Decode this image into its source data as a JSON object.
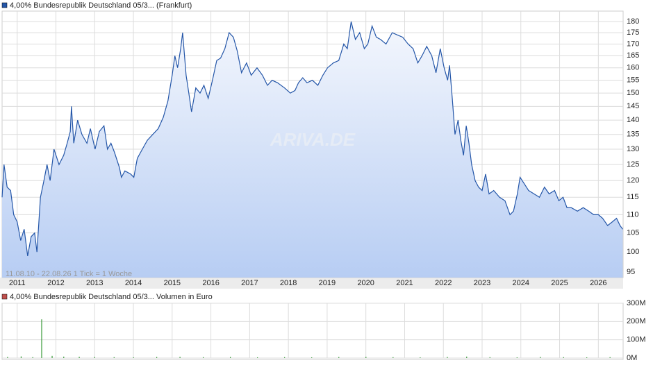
{
  "chart_data": [
    {
      "type": "line",
      "log": true,
      "grid": true,
      "note": "11.08.10 - 22.08.26   1 Tick = 1 Woche",
      "watermark": "ARIVA.DE",
      "xlim": [
        2010.61,
        2026.64
      ],
      "xticks": [
        2011,
        2012,
        2013,
        2014,
        2015,
        2016,
        2017,
        2018,
        2019,
        2020,
        2021,
        2022,
        2023,
        2024,
        2025,
        2026
      ],
      "ylim": [
        93.7,
        184.9
      ],
      "yticks": [
        95,
        100,
        105,
        110,
        115,
        120,
        125,
        130,
        135,
        140,
        145,
        150,
        155,
        160,
        165,
        170,
        175,
        180
      ],
      "x": [
        2010.61,
        2010.66,
        2010.74,
        2010.83,
        2010.91,
        2011.0,
        2011.09,
        2011.18,
        2011.27,
        2011.36,
        2011.45,
        2011.51,
        2011.6,
        2011.69,
        2011.77,
        2011.85,
        2011.95,
        2012.08,
        2012.2,
        2012.29,
        2012.37,
        2012.4,
        2012.46,
        2012.56,
        2012.67,
        2012.8,
        2012.89,
        2013.01,
        2013.12,
        2013.24,
        2013.33,
        2013.42,
        2013.51,
        2013.64,
        2013.69,
        2013.78,
        2013.93,
        2014.01,
        2014.1,
        2014.23,
        2014.36,
        2014.5,
        2014.64,
        2014.77,
        2014.89,
        2015.0,
        2015.07,
        2015.14,
        2015.22,
        2015.27,
        2015.36,
        2015.43,
        2015.5,
        2015.61,
        2015.72,
        2015.82,
        2015.93,
        2016.04,
        2016.15,
        2016.25,
        2016.36,
        2016.47,
        2016.58,
        2016.68,
        2016.79,
        2016.92,
        2017.04,
        2017.19,
        2017.33,
        2017.46,
        2017.58,
        2017.72,
        2017.9,
        2018.05,
        2018.17,
        2018.26,
        2018.37,
        2018.48,
        2018.62,
        2018.76,
        2018.89,
        2019.01,
        2019.16,
        2019.3,
        2019.43,
        2019.52,
        2019.62,
        2019.73,
        2019.84,
        2019.96,
        2020.05,
        2020.16,
        2020.27,
        2020.38,
        2020.52,
        2020.68,
        2020.81,
        2020.95,
        2021.09,
        2021.22,
        2021.34,
        2021.45,
        2021.57,
        2021.7,
        2021.81,
        2021.92,
        2022.02,
        2022.11,
        2022.16,
        2022.23,
        2022.3,
        2022.38,
        2022.45,
        2022.52,
        2022.59,
        2022.66,
        2022.73,
        2022.82,
        2022.91,
        2023.0,
        2023.09,
        2023.18,
        2023.3,
        2023.45,
        2023.59,
        2023.72,
        2023.81,
        2023.91,
        2023.98,
        2024.09,
        2024.2,
        2024.34,
        2024.48,
        2024.61,
        2024.73,
        2024.87,
        2024.98,
        2025.09,
        2025.19,
        2025.3,
        2025.46,
        2025.61,
        2025.75,
        2025.88,
        2026.0,
        2026.11,
        2026.24,
        2026.36,
        2026.47,
        2026.56,
        2026.63
      ],
      "series": [
        {
          "name": "4,00% Bundesrepublik Deutschland 05/3... (Frankfurt)",
          "color": "#2456a8",
          "values": [
            115,
            125,
            118,
            117,
            110,
            108,
            103,
            106,
            99,
            104,
            105,
            100,
            115,
            120,
            125,
            120,
            130,
            125,
            128,
            132,
            136,
            145,
            132,
            140,
            135,
            132,
            137,
            130,
            136,
            138,
            130,
            132,
            129,
            124,
            121,
            123,
            122,
            121,
            127,
            130,
            133,
            135,
            137,
            141,
            147,
            157,
            165,
            160,
            168,
            175,
            157,
            150,
            143,
            152,
            150,
            153,
            148,
            155,
            163,
            164,
            168,
            175,
            173,
            167,
            158,
            162,
            157,
            160,
            157,
            153,
            155,
            154,
            152,
            150,
            151,
            154,
            156,
            154,
            155,
            153,
            157,
            160,
            162,
            163,
            170,
            168,
            180,
            172,
            175,
            168,
            170,
            178,
            173,
            172,
            170,
            175,
            174,
            173,
            170,
            168,
            162,
            165,
            169,
            165,
            158,
            168,
            160,
            155,
            161,
            148,
            135,
            140,
            133,
            128,
            138,
            132,
            125,
            120,
            118,
            117,
            122,
            116,
            117,
            115,
            114,
            110,
            111,
            116,
            121,
            119,
            117,
            116,
            115,
            118,
            116,
            117,
            114,
            115,
            112,
            112,
            111,
            112,
            111,
            110,
            110,
            109,
            107,
            108,
            109,
            107,
            106
          ]
        }
      ]
    },
    {
      "type": "bar",
      "grid": true,
      "bar_color": "#3a9a3a",
      "xlim": [
        2010.61,
        2026.64
      ],
      "xticks": [
        2011,
        2012,
        2013,
        2014,
        2015,
        2016,
        2017,
        2018,
        2019,
        2020,
        2021,
        2022,
        2023,
        2024,
        2025,
        2026
      ],
      "ylim": [
        0,
        300000000
      ],
      "yticks": [
        {
          "value": 0,
          "label": "0M"
        },
        {
          "value": 100000000,
          "label": "100M"
        },
        {
          "value": 200000000,
          "label": "200M"
        },
        {
          "value": 300000000,
          "label": "300M"
        }
      ],
      "x": [
        2010.75,
        2011.1,
        2011.4,
        2011.63,
        2011.9,
        2012.2,
        2012.6,
        2013.0,
        2013.5,
        2014.0,
        2014.6,
        2015.2,
        2015.8,
        2016.5,
        2017.2,
        2017.9,
        2018.6,
        2019.3,
        2020.0,
        2020.7,
        2021.4,
        2022.1,
        2022.6,
        2023.2,
        2023.9,
        2024.5,
        2025.1,
        2025.7,
        2026.3
      ],
      "series": [
        {
          "name": "4,00% Bundesrepublik Deutschland 05/3... Volumen in Euro",
          "color": "#c0504d",
          "values": [
            6000000,
            9000000,
            5000000,
            212000000,
            12000000,
            8000000,
            7000000,
            6000000,
            5000000,
            4000000,
            6000000,
            7000000,
            5000000,
            6000000,
            4000000,
            5000000,
            4000000,
            6000000,
            7000000,
            5000000,
            4000000,
            6000000,
            8000000,
            5000000,
            4000000,
            6000000,
            5000000,
            4000000,
            5000000
          ]
        }
      ]
    }
  ]
}
